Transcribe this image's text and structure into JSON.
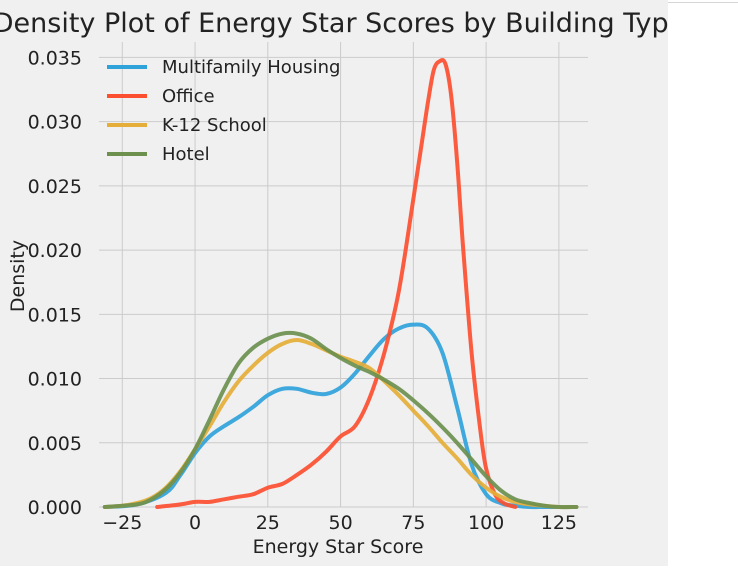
{
  "chart_data": {
    "type": "line",
    "title": "Density Plot of Energy Star Scores by Building Type",
    "xlabel": "Energy Star Score",
    "ylabel": "Density",
    "xlim": [
      -33,
      135
    ],
    "ylim": [
      0,
      0.0362
    ],
    "xticks": [
      -25,
      0,
      25,
      50,
      75,
      100,
      125
    ],
    "xtick_labels": [
      "−25",
      "0",
      "25",
      "50",
      "75",
      "100",
      "125"
    ],
    "yticks": [
      0,
      0.005,
      0.01,
      0.015,
      0.02,
      0.025,
      0.03,
      0.035
    ],
    "ytick_labels": [
      "0.000",
      "0.005",
      "0.010",
      "0.015",
      "0.020",
      "0.025",
      "0.030",
      "0.035"
    ],
    "grid": true,
    "legend_position": "top-left",
    "series": [
      {
        "name": "Multifamily Housing",
        "color": "#30a2da",
        "x": [
          -31,
          -20,
          -10,
          -5,
          0,
          5,
          10,
          15,
          20,
          25,
          30,
          35,
          40,
          45,
          50,
          55,
          60,
          65,
          70,
          75,
          80,
          85,
          90,
          95,
          100,
          105,
          110,
          115,
          120,
          125,
          131
        ],
        "y": [
          0.0,
          0.0002,
          0.0011,
          0.0025,
          0.0042,
          0.0055,
          0.0063,
          0.007,
          0.0078,
          0.0087,
          0.0092,
          0.0092,
          0.0089,
          0.0088,
          0.0093,
          0.0104,
          0.0118,
          0.0131,
          0.0139,
          0.0142,
          0.0139,
          0.012,
          0.0078,
          0.0033,
          0.001,
          0.0003,
          0.0001,
          0.0,
          0.0,
          0.0,
          0.0
        ]
      },
      {
        "name": "Office",
        "color": "#fc4f30",
        "x": [
          -13,
          -5,
          0,
          5,
          10,
          15,
          20,
          25,
          30,
          35,
          40,
          45,
          50,
          55,
          60,
          65,
          70,
          75,
          78,
          80,
          82,
          84,
          86,
          88,
          90,
          92,
          95,
          98,
          100,
          103,
          106,
          110
        ],
        "y": [
          0.0,
          0.0002,
          0.0004,
          0.0004,
          0.0006,
          0.0008,
          0.001,
          0.0015,
          0.0018,
          0.0025,
          0.0033,
          0.0043,
          0.0055,
          0.0063,
          0.0085,
          0.012,
          0.0168,
          0.024,
          0.0285,
          0.0315,
          0.034,
          0.0347,
          0.0345,
          0.032,
          0.027,
          0.0205,
          0.012,
          0.006,
          0.003,
          0.001,
          0.0003,
          0.0
        ]
      },
      {
        "name": "K-12 School",
        "color": "#e5ae38",
        "x": [
          -31,
          -25,
          -20,
          -15,
          -10,
          -5,
          0,
          5,
          10,
          15,
          20,
          25,
          30,
          35,
          40,
          45,
          50,
          55,
          60,
          65,
          70,
          75,
          80,
          85,
          90,
          95,
          100,
          105,
          110,
          115,
          120,
          125,
          131
        ],
        "y": [
          0.0,
          0.0001,
          0.0003,
          0.0007,
          0.0015,
          0.0028,
          0.0045,
          0.0063,
          0.0082,
          0.0098,
          0.011,
          0.012,
          0.0127,
          0.013,
          0.0127,
          0.0122,
          0.0117,
          0.0113,
          0.0108,
          0.0098,
          0.0087,
          0.0075,
          0.0063,
          0.005,
          0.0038,
          0.0025,
          0.0015,
          0.0008,
          0.0004,
          0.0002,
          0.0001,
          0.0,
          0.0
        ]
      },
      {
        "name": "Hotel",
        "color": "#6d904f",
        "x": [
          -31,
          -20,
          -15,
          -10,
          -5,
          0,
          5,
          10,
          15,
          20,
          25,
          30,
          35,
          40,
          45,
          50,
          55,
          60,
          65,
          70,
          75,
          80,
          85,
          90,
          95,
          100,
          105,
          110,
          115,
          120,
          125,
          131
        ],
        "y": [
          0.0,
          0.0002,
          0.0006,
          0.0014,
          0.0027,
          0.0045,
          0.0068,
          0.0092,
          0.0112,
          0.0124,
          0.0131,
          0.0135,
          0.0135,
          0.0131,
          0.0123,
          0.0116,
          0.011,
          0.0105,
          0.0099,
          0.0092,
          0.0083,
          0.0073,
          0.0062,
          0.005,
          0.0037,
          0.0024,
          0.0013,
          0.0006,
          0.0003,
          0.0001,
          0.0,
          0.0
        ]
      }
    ]
  }
}
